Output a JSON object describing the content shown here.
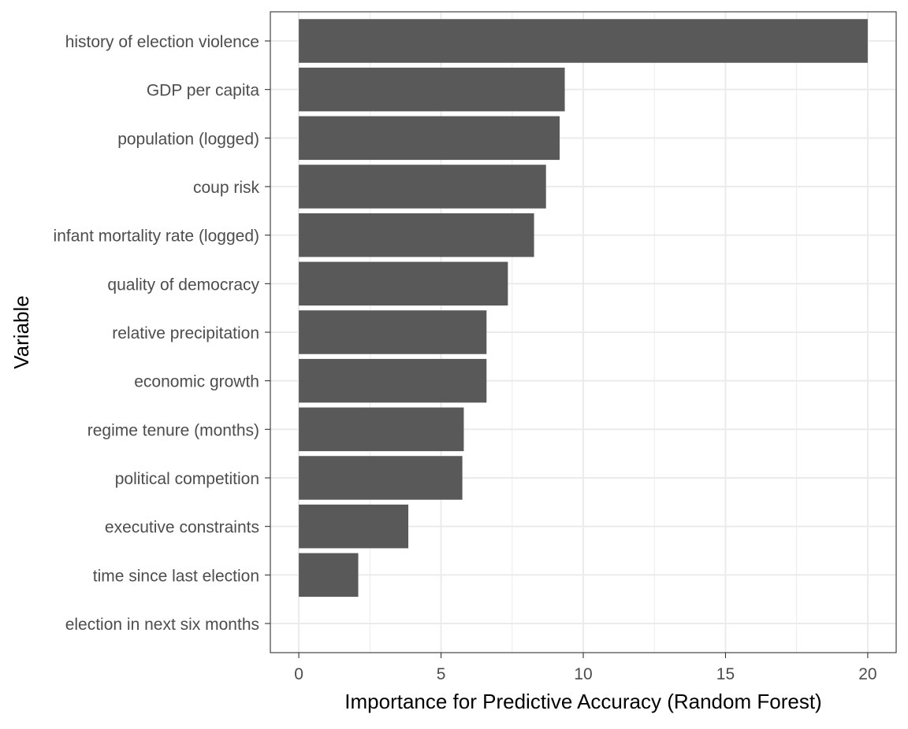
{
  "chart_data": {
    "type": "bar",
    "orientation": "horizontal",
    "title": "",
    "xlabel": "Importance for Predictive Accuracy (Random Forest)",
    "ylabel": "Variable",
    "xlim": [
      -1,
      21
    ],
    "x_ticks": [
      0,
      5,
      10,
      15,
      20
    ],
    "grid": true,
    "categories": [
      "history of election violence",
      "GDP per capita",
      "population (logged)",
      "coup risk",
      "infant mortality rate (logged)",
      "quality of democracy",
      "relative precipitation",
      "economic growth",
      "regime tenure (months)",
      "political competition",
      "executive constraints",
      "time since last election",
      "election in next six months"
    ],
    "values": [
      20.0,
      9.35,
      9.17,
      8.69,
      8.27,
      7.35,
      6.6,
      6.6,
      5.8,
      5.75,
      3.85,
      2.09,
      0.0
    ],
    "bar_color": "#595959",
    "grid_color": "#ebebeb",
    "axis_text_color": "#4d4d4d",
    "title_color": "#000000"
  }
}
